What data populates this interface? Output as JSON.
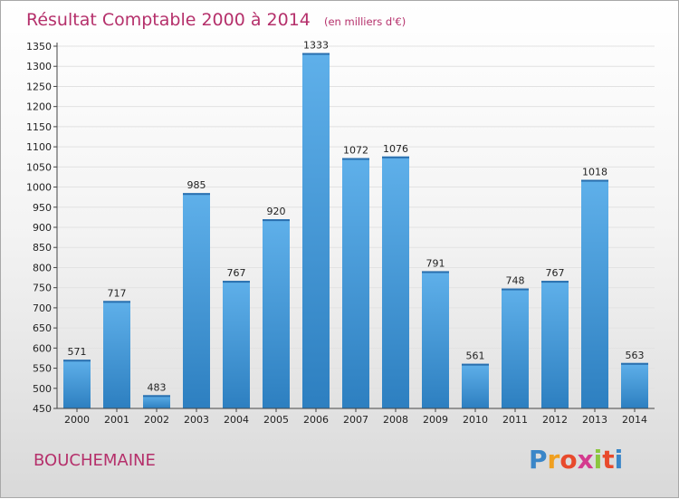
{
  "chart_data": {
    "type": "bar",
    "title": "Résultat Comptable 2000 à 2014",
    "subtitle": "(en milliers d'€)",
    "categories": [
      "2000",
      "2001",
      "2002",
      "2003",
      "2004",
      "2005",
      "2006",
      "2007",
      "2008",
      "2009",
      "2010",
      "2011",
      "2012",
      "2013",
      "2014"
    ],
    "values": [
      571,
      717,
      483,
      985,
      767,
      920,
      1333,
      1072,
      1076,
      791,
      561,
      748,
      767,
      1018,
      563
    ],
    "ylim": [
      450,
      1350
    ],
    "yticks": [
      450,
      500,
      550,
      600,
      650,
      700,
      750,
      800,
      850,
      900,
      950,
      1000,
      1050,
      1100,
      1150,
      1200,
      1250,
      1300,
      1350
    ],
    "grid": true,
    "bar_color": "#4aa0dc"
  },
  "place_name": "BOUCHEMAINE",
  "logo": {
    "letters": [
      "P",
      "r",
      "o",
      "x",
      "i",
      "t",
      "i"
    ],
    "colors": [
      "#3a86c8",
      "#f0a020",
      "#e84a2c",
      "#d43a8e",
      "#8cc63f",
      "#e84a2c",
      "#3a86c8"
    ]
  }
}
